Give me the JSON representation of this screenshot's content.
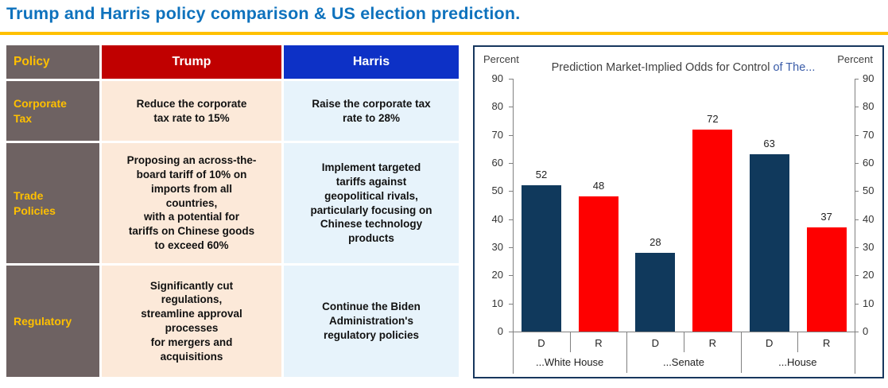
{
  "page": {
    "title": "Trump and Harris policy comparison & US election prediction.",
    "title_color": "#0E72BD",
    "underline_color": "#FFC000"
  },
  "table": {
    "header": {
      "policy": "Policy",
      "trump": "Trump",
      "harris": "Harris"
    },
    "rows": [
      {
        "policy": "Corporate\nTax",
        "trump": "Reduce the corporate\ntax rate to 15%",
        "harris": "Raise the corporate tax\nrate to 28%"
      },
      {
        "policy": "Trade\nPolicies",
        "trump": "Proposing an across-the-\nboard tariff of 10% on\nimports from all\ncountries,\nwith a potential for\ntariffs on Chinese goods\nto exceed 60%",
        "harris": "Implement targeted\ntariffs against\ngeopolitical rivals,\nparticularly focusing on\nChinese technology\nproducts"
      },
      {
        "policy": "Regulatory",
        "trump": "Significantly cut\nregulations,\nstreamline approval\nprocesses\nfor mergers and\nacquisitions",
        "harris": "Continue the Biden\nAdministration's\nregulatory policies"
      }
    ],
    "colors": {
      "policy_header_bg": "#6E6262",
      "policy_text": "#FFC000",
      "trump_header_bg": "#C00000",
      "harris_header_bg": "#0D31C6",
      "trump_cell_bg": "#FCE9D9",
      "harris_cell_bg": "#E7F3FB"
    }
  },
  "chart_data": {
    "type": "bar",
    "title": "Prediction Market-Implied Odds for Control of The...",
    "title_parts": [
      "Prediction Market-Implied Odds for Control",
      "of The..."
    ],
    "axis_label_left": "Percent",
    "axis_label_right": "Percent",
    "ylim": [
      0,
      90
    ],
    "ytick_step": 10,
    "grid": false,
    "legend_position": "none",
    "categories": [
      "...White House",
      "...Senate",
      "...House"
    ],
    "bar_sublabels": [
      "D",
      "R"
    ],
    "series": [
      {
        "name": "D",
        "color": "#10395C",
        "values": [
          52,
          28,
          63
        ]
      },
      {
        "name": "R",
        "color": "#FE0000",
        "values": [
          48,
          72,
          37
        ]
      }
    ],
    "panel_border_color": "#17375E"
  }
}
